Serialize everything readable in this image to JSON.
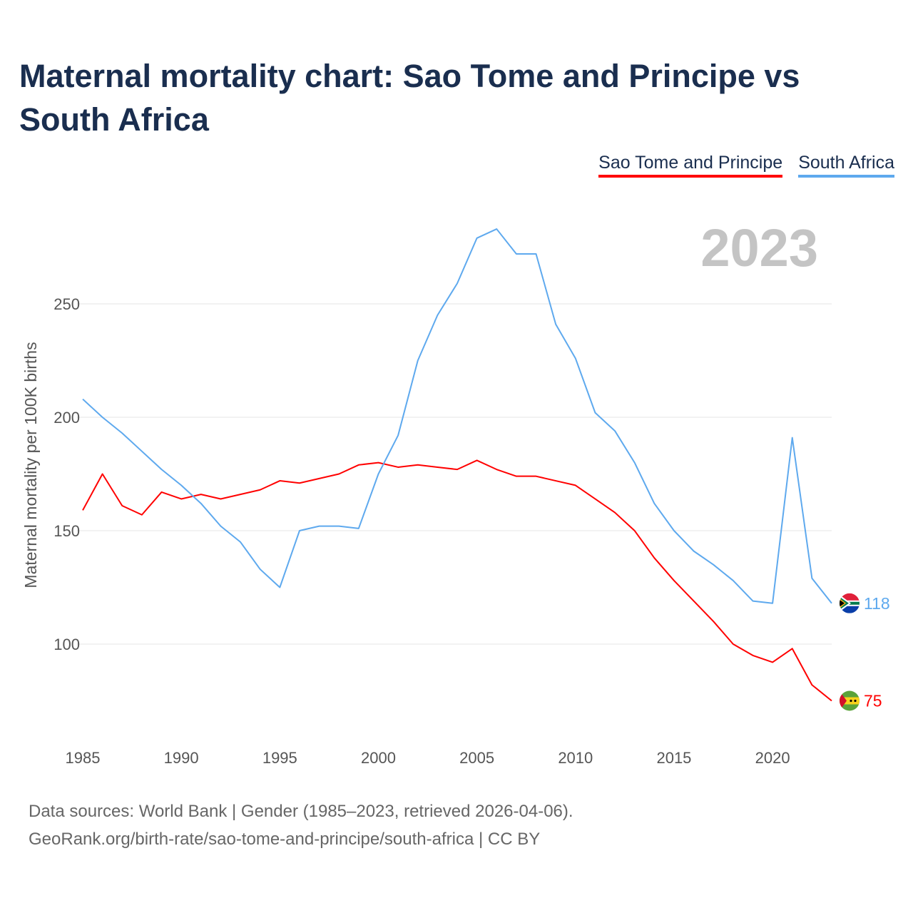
{
  "title": "Maternal mortality chart: Sao Tome and Principe vs South Africa",
  "year_label": "2023",
  "source_line1": "Data sources: World Bank | Gender (1985–2023, retrieved 2026-04-06).",
  "source_line2": "GeoRank.org/birth-rate/sao-tome-and-principe/south-africa | CC BY",
  "chart_data": {
    "type": "line",
    "title": "Maternal mortality chart: Sao Tome and Principe vs South Africa",
    "xlabel": "",
    "ylabel": "Maternal mortality per 100K births",
    "xlim": [
      1985,
      2023
    ],
    "ylim": [
      60,
      290
    ],
    "yticks": [
      100,
      150,
      200,
      250
    ],
    "xticks": [
      1985,
      1990,
      1995,
      2000,
      2005,
      2010,
      2015,
      2020
    ],
    "grid": true,
    "legend_position": "top-right",
    "x": [
      1985,
      1986,
      1987,
      1988,
      1989,
      1990,
      1991,
      1992,
      1993,
      1994,
      1995,
      1996,
      1997,
      1998,
      1999,
      2000,
      2001,
      2002,
      2003,
      2004,
      2005,
      2006,
      2007,
      2008,
      2009,
      2010,
      2011,
      2012,
      2013,
      2014,
      2015,
      2016,
      2017,
      2018,
      2019,
      2020,
      2021,
      2022,
      2023
    ],
    "series": [
      {
        "name": "Sao Tome and Principe",
        "color": "#ff0000",
        "end_label": "75",
        "values": [
          159,
          175,
          161,
          157,
          167,
          164,
          166,
          164,
          166,
          168,
          172,
          171,
          173,
          175,
          179,
          180,
          178,
          179,
          178,
          177,
          181,
          177,
          174,
          174,
          172,
          170,
          164,
          158,
          150,
          138,
          128,
          119,
          110,
          100,
          95,
          92,
          98,
          82,
          75
        ]
      },
      {
        "name": "South Africa",
        "color": "#5ea9ee",
        "end_label": "118",
        "values": [
          208,
          200,
          193,
          185,
          177,
          170,
          162,
          152,
          145,
          133,
          125,
          150,
          152,
          152,
          151,
          175,
          192,
          225,
          245,
          259,
          279,
          283,
          272,
          272,
          241,
          226,
          202,
          194,
          180,
          162,
          150,
          141,
          135,
          128,
          119,
          118,
          191,
          129,
          118
        ]
      }
    ]
  }
}
